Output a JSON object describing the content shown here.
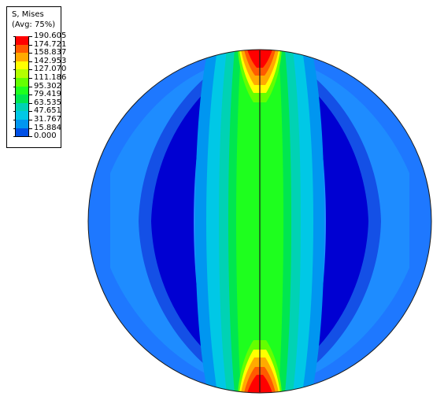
{
  "legend": {
    "title_line1": "S, Mises",
    "title_line2": "(Avg: 75%)",
    "levels": [
      {
        "value": "190.605",
        "color": "#ff0000"
      },
      {
        "value": "174.721",
        "color": "#ff5a00"
      },
      {
        "value": "158.837",
        "color": "#ffaa00"
      },
      {
        "value": "142.953",
        "color": "#ffff00"
      },
      {
        "value": "127.070",
        "color": "#b4ff00"
      },
      {
        "value": "111.186",
        "color": "#64ff00"
      },
      {
        "value": "95.302",
        "color": "#1eff1e"
      },
      {
        "value": "79.419",
        "color": "#00e650"
      },
      {
        "value": "63.535",
        "color": "#00d2b4"
      },
      {
        "value": "47.651",
        "color": "#00c8e6"
      },
      {
        "value": "31.767",
        "color": "#0096f0"
      },
      {
        "value": "15.884",
        "color": "#0050e6"
      },
      {
        "value": "0.000",
        "color": "#0000d2"
      }
    ]
  }
}
